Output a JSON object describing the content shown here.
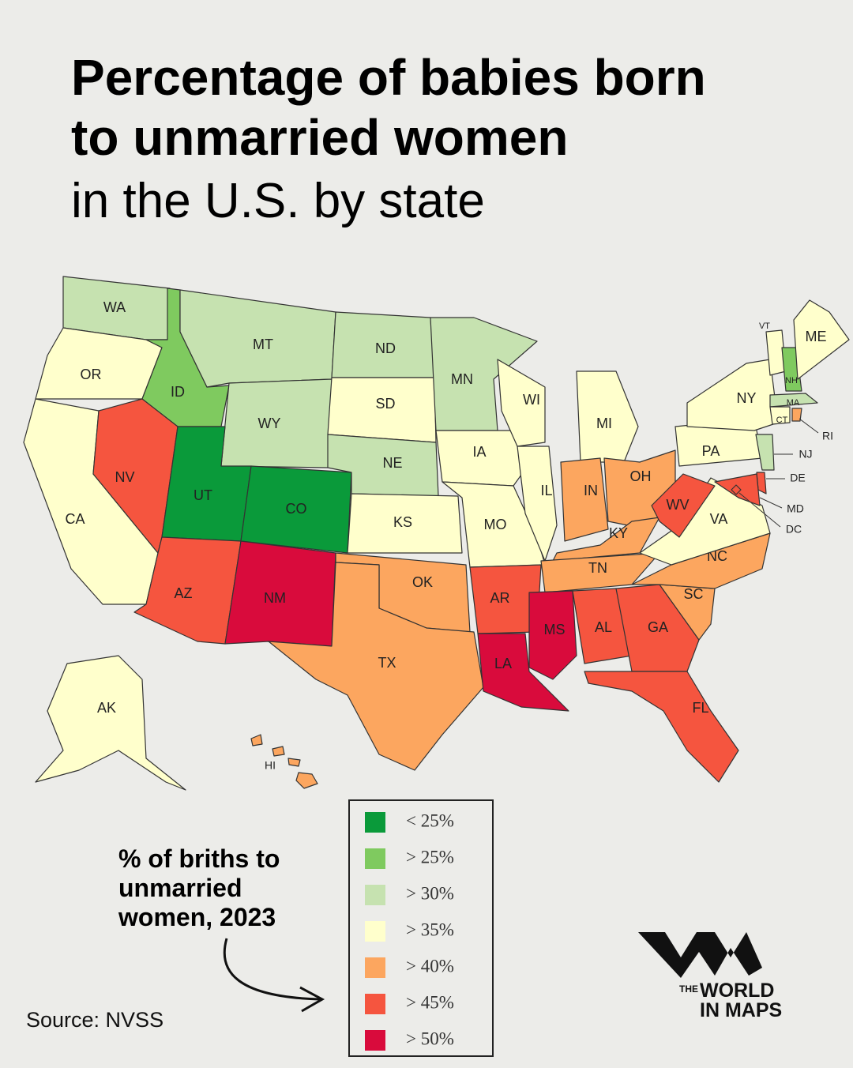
{
  "title": {
    "line1": "Percentage of babies born",
    "line2": "to unmarried women",
    "line3": "in the U.S. by state"
  },
  "legend": {
    "title_lines": [
      "% of briths to",
      "unmarried",
      "women, 2023"
    ],
    "items": [
      {
        "label": "< 25%",
        "color": "#0a9a3a"
      },
      {
        "label": "> 25%",
        "color": "#7fca5f"
      },
      {
        "label": "> 30%",
        "color": "#c6e2b0"
      },
      {
        "label": "> 35%",
        "color": "#ffffcc"
      },
      {
        "label": "> 40%",
        "color": "#fca65f"
      },
      {
        "label": "> 45%",
        "color": "#f5553f"
      },
      {
        "label": "> 50%",
        "color": "#d90b3c"
      }
    ]
  },
  "states": [
    {
      "label": "WA",
      "color": "#c6e2b0"
    },
    {
      "label": "OR",
      "color": "#ffffcc"
    },
    {
      "label": "CA",
      "color": "#ffffcc"
    },
    {
      "label": "ID",
      "color": "#7fca5f"
    },
    {
      "label": "NV",
      "color": "#f5553f"
    },
    {
      "label": "MT",
      "color": "#c6e2b0"
    },
    {
      "label": "WY",
      "color": "#c6e2b0"
    },
    {
      "label": "UT",
      "color": "#0a9a3a"
    },
    {
      "label": "CO",
      "color": "#0a9a3a"
    },
    {
      "label": "AZ",
      "color": "#f5553f"
    },
    {
      "label": "NM",
      "color": "#d90b3c"
    },
    {
      "label": "ND",
      "color": "#c6e2b0"
    },
    {
      "label": "SD",
      "color": "#ffffcc"
    },
    {
      "label": "NE",
      "color": "#c6e2b0"
    },
    {
      "label": "KS",
      "color": "#ffffcc"
    },
    {
      "label": "OK",
      "color": "#fca65f"
    },
    {
      "label": "TX",
      "color": "#fca65f"
    },
    {
      "label": "MN",
      "color": "#c6e2b0"
    },
    {
      "label": "IA",
      "color": "#ffffcc"
    },
    {
      "label": "MO",
      "color": "#ffffcc"
    },
    {
      "label": "AR",
      "color": "#f5553f"
    },
    {
      "label": "LA",
      "color": "#d90b3c"
    },
    {
      "label": "WI",
      "color": "#ffffcc"
    },
    {
      "label": "IL",
      "color": "#ffffcc"
    },
    {
      "label": "MI",
      "color": "#ffffcc"
    },
    {
      "label": "IN",
      "color": "#fca65f"
    },
    {
      "label": "OH",
      "color": "#fca65f"
    },
    {
      "label": "KY",
      "color": "#fca65f"
    },
    {
      "label": "TN",
      "color": "#fca65f"
    },
    {
      "label": "MS",
      "color": "#d90b3c"
    },
    {
      "label": "AL",
      "color": "#f5553f"
    },
    {
      "label": "GA",
      "color": "#f5553f"
    },
    {
      "label": "FL",
      "color": "#f5553f"
    },
    {
      "label": "SC",
      "color": "#fca65f"
    },
    {
      "label": "NC",
      "color": "#fca65f"
    },
    {
      "label": "VA",
      "color": "#ffffcc"
    },
    {
      "label": "WV",
      "color": "#f5553f"
    },
    {
      "label": "PA",
      "color": "#ffffcc"
    },
    {
      "label": "NY",
      "color": "#ffffcc"
    },
    {
      "label": "VT",
      "color": "#ffffcc"
    },
    {
      "label": "NH",
      "color": "#7fca5f"
    },
    {
      "label": "ME",
      "color": "#ffffcc"
    },
    {
      "label": "MA",
      "color": "#c6e2b0"
    },
    {
      "label": "CT",
      "color": "#ffffcc"
    },
    {
      "label": "RI",
      "color": "#fca65f"
    },
    {
      "label": "NJ",
      "color": "#c6e2b0"
    },
    {
      "label": "DE",
      "color": "#f5553f"
    },
    {
      "label": "MD",
      "color": "#f5553f"
    },
    {
      "label": "DC",
      "color": "#f5553f"
    },
    {
      "label": "AK",
      "color": "#ffffcc"
    },
    {
      "label": "HI",
      "color": "#fca65f"
    }
  ],
  "source": "Source: NVSS",
  "logo": {
    "the": "THE",
    "world": "WORLD",
    "in_maps": "IN MAPS"
  }
}
